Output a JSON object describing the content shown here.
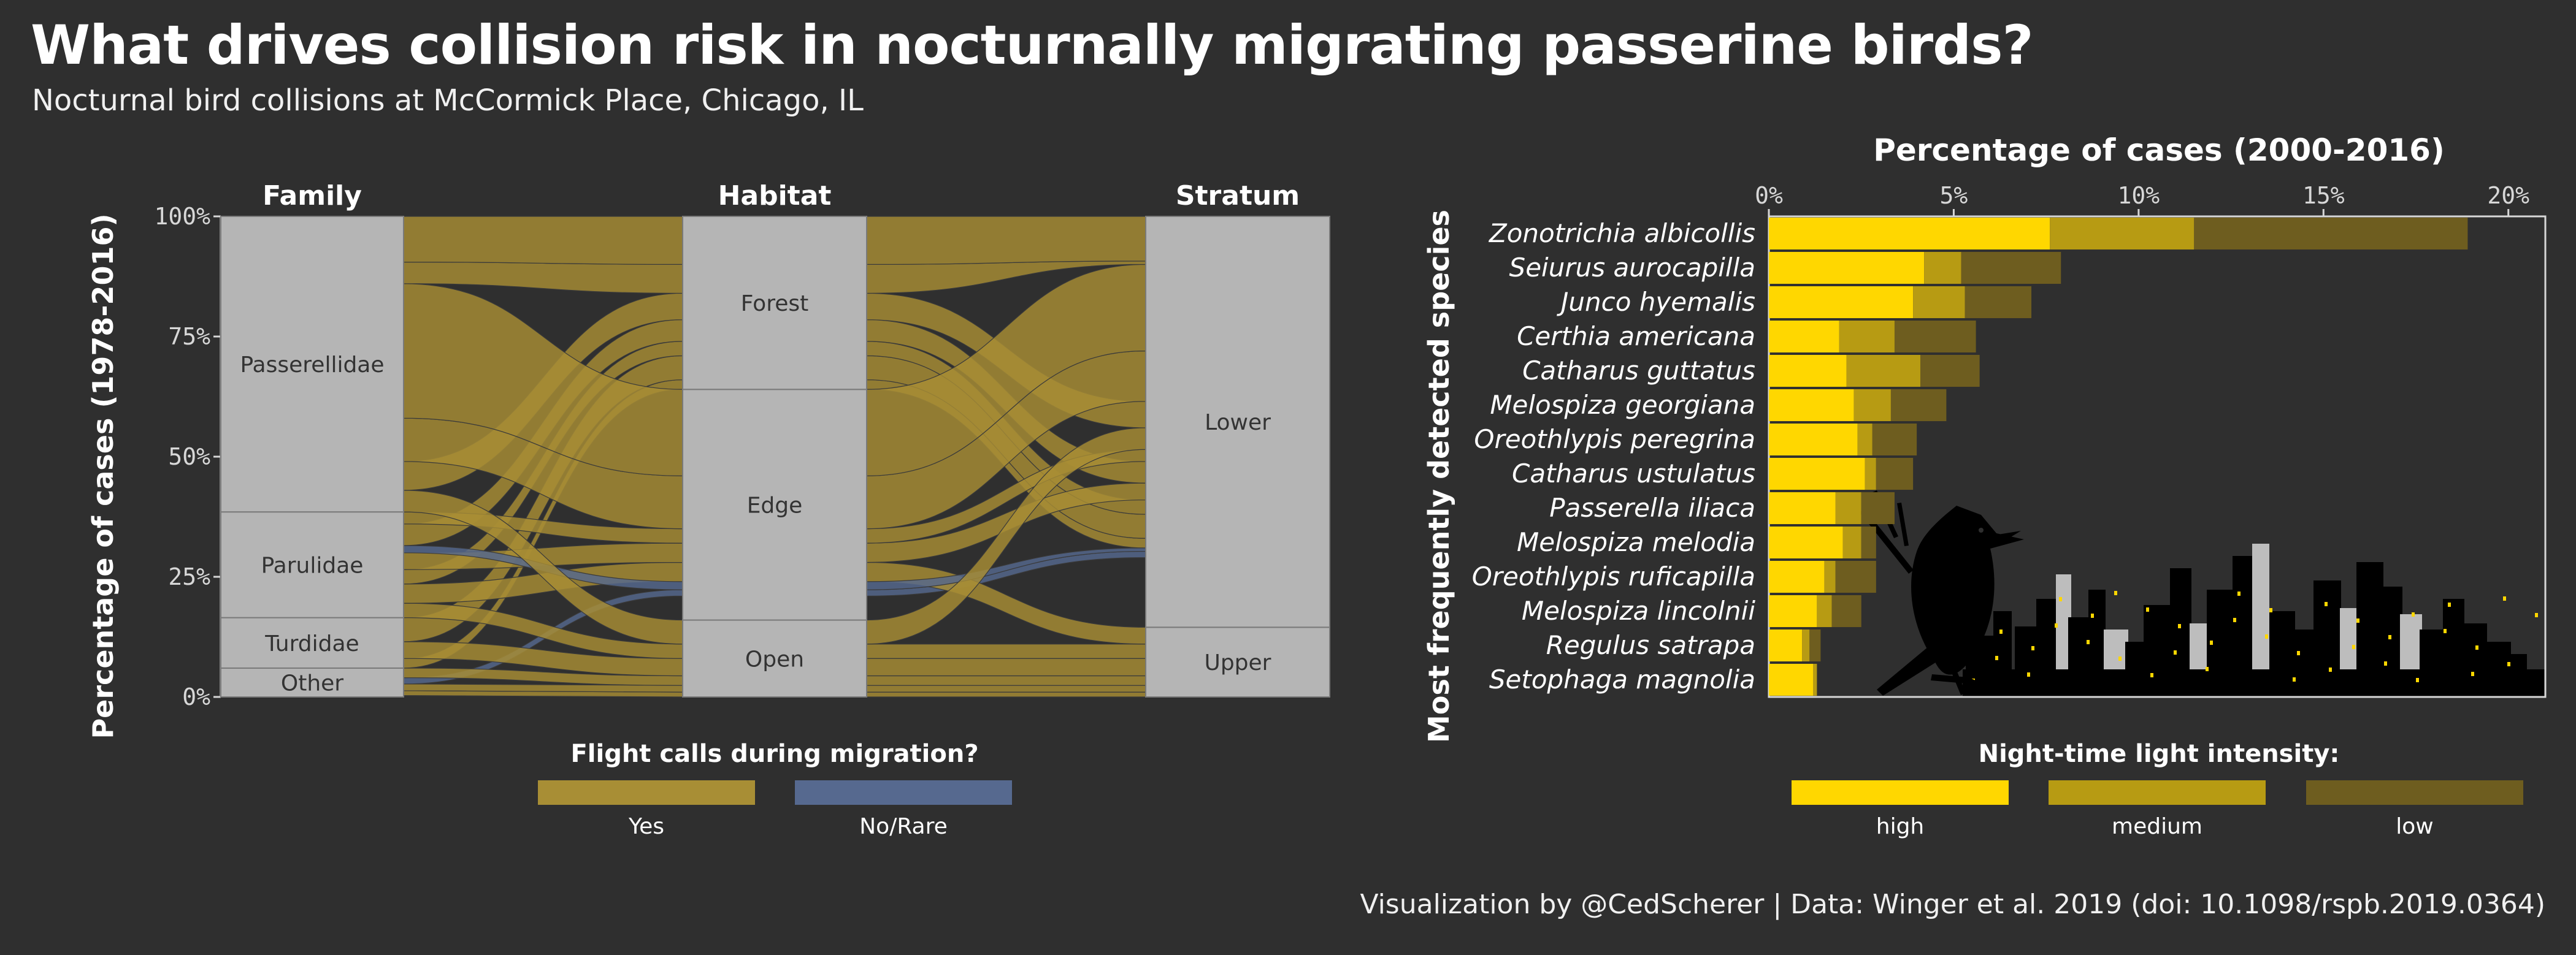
{
  "title": "What drives collision risk in nocturnally migrating passerine birds?",
  "subtitle": "Nocturnal bird collisions at McCormick Place, Chicago, IL",
  "caption": "Visualization by @CedScherer  |  Data: Winger et al. 2019 (doi: 10.1098/rspb.2019.0364)",
  "colors": {
    "background": "#2f2f2f",
    "axis_block": "#b5b5b5",
    "flow_yes": "#a88e35",
    "flow_yes_light": "#d4b43c",
    "flow_no": "#56698f",
    "light_high": "#ffd700",
    "light_medium": "#b79b13",
    "light_low": "#6e5d1f"
  },
  "chart_data": [
    {
      "type": "alluvial",
      "ylabel": "Percentage of cases (1978-2016)",
      "ylim": [
        0,
        100
      ],
      "yticks": [
        "0%",
        "25%",
        "50%",
        "75%",
        "100%"
      ],
      "axes": [
        {
          "name": "Family",
          "strata": [
            {
              "label": "Other",
              "from": 0,
              "to": 6
            },
            {
              "label": "Turdidae",
              "from": 6,
              "to": 16.5
            },
            {
              "label": "Parulidae",
              "from": 16.5,
              "to": 38.5
            },
            {
              "label": "Passerellidae",
              "from": 38.5,
              "to": 100
            }
          ]
        },
        {
          "name": "Habitat",
          "strata": [
            {
              "label": "Open",
              "from": 0,
              "to": 16
            },
            {
              "label": "Edge",
              "from": 16,
              "to": 64
            },
            {
              "label": "Forest",
              "from": 64,
              "to": 100
            }
          ]
        },
        {
          "name": "Stratum",
          "strata": [
            {
              "label": "Upper",
              "from": 0,
              "to": 14.5
            },
            {
              "label": "Lower",
              "from": 14.5,
              "to": 100
            }
          ]
        }
      ],
      "flows": [
        {
          "call": "Yes",
          "a": [
            0.3,
            1.3
          ],
          "b": [
            0.0,
            1.0
          ],
          "c": [
            0.0,
            1.0
          ]
        },
        {
          "call": "Yes",
          "a": [
            1.3,
            2.7
          ],
          "b": [
            1.0,
            2.4
          ],
          "c": [
            1.0,
            2.4
          ]
        },
        {
          "call": "No/Rare",
          "a": [
            2.7,
            4.0
          ],
          "b": [
            21.0,
            22.3
          ],
          "c": [
            29.0,
            30.3
          ]
        },
        {
          "call": "Yes",
          "a": [
            4.0,
            6.0
          ],
          "b": [
            2.4,
            4.4
          ],
          "c": [
            2.4,
            4.4
          ]
        },
        {
          "call": "Yes",
          "a": [
            6.0,
            8.0
          ],
          "b": [
            64.0,
            66.0
          ],
          "c": [
            31.0,
            33.0
          ]
        },
        {
          "call": "Yes",
          "a": [
            8.0,
            11.5
          ],
          "b": [
            4.4,
            8.0
          ],
          "c": [
            4.4,
            8.0
          ]
        },
        {
          "call": "Yes",
          "a": [
            11.5,
            16.5
          ],
          "b": [
            66.0,
            71.0
          ],
          "c": [
            33.0,
            38.0
          ]
        },
        {
          "call": "Yes",
          "a": [
            16.5,
            19.5
          ],
          "b": [
            8.0,
            11.0
          ],
          "c": [
            8.0,
            11.0
          ]
        },
        {
          "call": "Yes",
          "a": [
            19.5,
            23.5
          ],
          "b": [
            24.0,
            28.0
          ],
          "c": [
            11.0,
            14.5
          ]
        },
        {
          "call": "Yes",
          "a": [
            23.5,
            26.5
          ],
          "b": [
            71.0,
            74.0
          ],
          "c": [
            38.0,
            41.0
          ]
        },
        {
          "call": "Yes",
          "a": [
            26.5,
            30.0
          ],
          "b": [
            28.0,
            32.0
          ],
          "c": [
            41.0,
            44.5
          ]
        },
        {
          "call": "No/Rare",
          "a": [
            30.0,
            31.5
          ],
          "b": [
            22.3,
            24.0
          ],
          "c": [
            30.3,
            31.0
          ]
        },
        {
          "call": "Yes",
          "a": [
            31.5,
            36.0
          ],
          "b": [
            74.0,
            78.5
          ],
          "c": [
            44.5,
            49.0
          ]
        },
        {
          "call": "Yes",
          "a": [
            36.0,
            38.5
          ],
          "b": [
            32.0,
            35.0
          ],
          "c": [
            49.0,
            51.5
          ]
        },
        {
          "call": "Yes",
          "a": [
            38.5,
            43.0
          ],
          "b": [
            11.0,
            16.0
          ],
          "c": [
            51.5,
            56.0
          ]
        },
        {
          "call": "Yes",
          "a": [
            43.0,
            49.0
          ],
          "b": [
            78.5,
            84.0
          ],
          "c": [
            56.0,
            61.5
          ]
        },
        {
          "call": "Yes",
          "a": [
            49.0,
            58.0
          ],
          "b": [
            35.0,
            46.0
          ],
          "c": [
            61.5,
            72.0
          ]
        },
        {
          "call": "Yes",
          "a": [
            58.0,
            86.0
          ],
          "b": [
            46.0,
            64.0
          ],
          "c": [
            72.0,
            90.0
          ]
        },
        {
          "call": "Yes",
          "a": [
            86.0,
            90.5
          ],
          "b": [
            84.0,
            90.0
          ],
          "c": [
            90.0,
            90.7
          ]
        },
        {
          "call": "Yes",
          "a": [
            90.5,
            100.0
          ],
          "b": [
            90.0,
            100.0
          ],
          "c": [
            90.7,
            100.0
          ]
        }
      ],
      "legend": {
        "title": "Flight calls during migration?",
        "items": [
          "Yes",
          "No/Rare"
        ]
      }
    },
    {
      "type": "bar",
      "stacked": true,
      "orientation": "horizontal",
      "title": "Percentage of cases (2000-2016)",
      "ylabel": "Most frequently detected species",
      "xlim": [
        0,
        21
      ],
      "xticks": [
        "0%",
        "5%",
        "10%",
        "15%",
        "20%"
      ],
      "categories": [
        "Zonotrichia albicollis",
        "Seiurus aurocapilla",
        "Junco hyemalis",
        "Certhia americana",
        "Catharus guttatus",
        "Melospiza georgiana",
        "Oreothlypis peregrina",
        "Catharus ustulatus",
        "Passerella iliaca",
        "Melospiza melodia",
        "Oreothlypis ruficapilla",
        "Melospiza lincolnii",
        "Regulus satrapa",
        "Setophaga magnolia"
      ],
      "series": [
        {
          "name": "high",
          "values": [
            7.6,
            4.2,
            3.9,
            1.9,
            2.1,
            2.3,
            2.4,
            2.6,
            1.8,
            2.0,
            1.5,
            1.3,
            0.9,
            1.2
          ]
        },
        {
          "name": "medium",
          "values": [
            3.9,
            1.0,
            1.4,
            1.5,
            2.0,
            1.0,
            0.4,
            0.3,
            0.7,
            0.5,
            0.3,
            0.4,
            0.2,
            0.1
          ]
        },
        {
          "name": "low",
          "values": [
            7.4,
            2.7,
            1.8,
            2.2,
            1.6,
            1.5,
            1.2,
            1.0,
            0.9,
            0.4,
            1.1,
            0.8,
            0.3,
            0.0
          ]
        }
      ],
      "legend": {
        "title": "Night-time light intensity:",
        "items": [
          "high",
          "medium",
          "low"
        ]
      }
    }
  ]
}
